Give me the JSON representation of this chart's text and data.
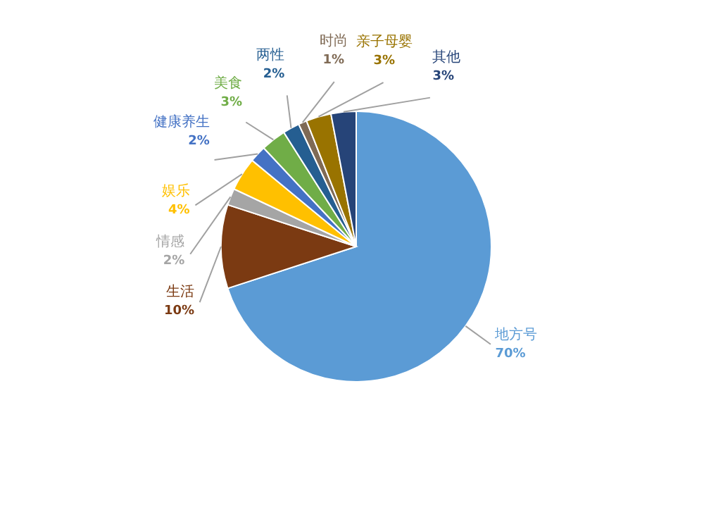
{
  "chart_data": {
    "type": "pie",
    "categories": [
      "地方号",
      "生活",
      "情感",
      "娱乐",
      "健康养生",
      "美食",
      "两性",
      "时尚",
      "亲子母婴",
      "其他"
    ],
    "values": [
      70,
      10,
      2,
      4,
      2,
      3,
      2,
      1,
      3,
      3
    ],
    "value_labels": [
      "70%",
      "10%",
      "2%",
      "4%",
      "2%",
      "3%",
      "2%",
      "1%",
      "3%",
      "3%"
    ],
    "colors": [
      "#5b9bd5",
      "#7b3a12",
      "#a5a5a5",
      "#ffc000",
      "#4472c4",
      "#70ad47",
      "#255e91",
      "#7f6a55",
      "#997300",
      "#264478"
    ],
    "legend": false
  }
}
